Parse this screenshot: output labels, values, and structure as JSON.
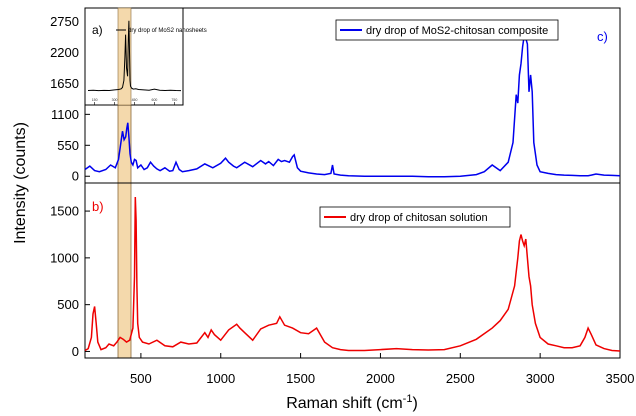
{
  "figure": {
    "xlabel_main": "Raman shift (cm",
    "xlabel_sup": "-1",
    "xlabel_close": ")",
    "ylabel": "Intensity (counts)"
  },
  "chart_data": [
    {
      "panel_label": "c)",
      "type": "line",
      "xlim": [
        150,
        3500
      ],
      "ylim": [
        -120,
        2990
      ],
      "yticks": [
        0,
        550,
        1100,
        1650,
        2200,
        2750
      ],
      "grid": false,
      "legend": {
        "position": "top-right",
        "entries": [
          "dry drop of MoS2-chitosan composite"
        ]
      },
      "series": [
        {
          "name": "dry drop of MoS2-chitosan composite",
          "color": "#0000EE",
          "x": [
            150,
            180,
            210,
            240,
            280,
            310,
            340,
            360,
            375,
            385,
            395,
            405,
            412,
            418,
            425,
            432,
            440,
            450,
            460,
            470,
            480,
            500,
            520,
            540,
            560,
            580,
            600,
            620,
            650,
            680,
            700,
            720,
            740,
            760,
            800,
            850,
            900,
            950,
            1000,
            1030,
            1050,
            1080,
            1100,
            1150,
            1200,
            1250,
            1280,
            1300,
            1330,
            1360,
            1380,
            1400,
            1430,
            1450,
            1460,
            1480,
            1500,
            1550,
            1600,
            1650,
            1690,
            1700,
            1710,
            1750,
            1800,
            1900,
            2000,
            2100,
            2200,
            2300,
            2400,
            2500,
            2600,
            2650,
            2700,
            2750,
            2800,
            2830,
            2850,
            2860,
            2870,
            2880,
            2890,
            2900,
            2910,
            2920,
            2930,
            2940,
            2950,
            2960,
            2980,
            3000,
            3050,
            3100,
            3150,
            3200,
            3250,
            3300,
            3320,
            3350,
            3400,
            3450,
            3500
          ],
          "y": [
            120,
            180,
            100,
            80,
            120,
            200,
            150,
            300,
            600,
            800,
            650,
            700,
            850,
            950,
            700,
            400,
            250,
            200,
            300,
            280,
            150,
            200,
            120,
            150,
            250,
            180,
            130,
            100,
            150,
            90,
            100,
            250,
            120,
            80,
            100,
            130,
            220,
            150,
            230,
            320,
            250,
            180,
            150,
            250,
            170,
            280,
            220,
            260,
            190,
            300,
            260,
            280,
            250,
            350,
            380,
            150,
            90,
            60,
            40,
            30,
            50,
            200,
            40,
            20,
            10,
            0,
            0,
            0,
            0,
            -10,
            -10,
            0,
            30,
            80,
            200,
            100,
            250,
            600,
            1450,
            1300,
            1800,
            2000,
            2300,
            2500,
            2450,
            2350,
            1500,
            1800,
            1500,
            600,
            200,
            80,
            50,
            30,
            20,
            15,
            10,
            10,
            20,
            40,
            20,
            15,
            10
          ]
        }
      ]
    },
    {
      "panel_label": "b)",
      "type": "line",
      "xlim": [
        150,
        3500
      ],
      "ylim": [
        -70,
        1800
      ],
      "yticks": [
        0,
        500,
        1000,
        1500
      ],
      "xticks": [
        500,
        1000,
        1500,
        2000,
        2500,
        3000,
        3500
      ],
      "grid": false,
      "legend": {
        "position": "top-center",
        "entries": [
          "dry drop of chitosan solution"
        ]
      },
      "series": [
        {
          "name": "dry drop of chitosan solution",
          "color": "#EE0000",
          "x": [
            150,
            170,
            190,
            200,
            210,
            220,
            230,
            250,
            280,
            300,
            330,
            350,
            370,
            390,
            410,
            430,
            450,
            460,
            465,
            470,
            475,
            480,
            490,
            510,
            550,
            600,
            650,
            700,
            750,
            800,
            850,
            900,
            920,
            940,
            960,
            1000,
            1050,
            1100,
            1120,
            1150,
            1200,
            1250,
            1300,
            1350,
            1370,
            1400,
            1450,
            1500,
            1550,
            1600,
            1650,
            1700,
            1750,
            1800,
            1900,
            2000,
            2100,
            2200,
            2300,
            2400,
            2500,
            2600,
            2700,
            2750,
            2800,
            2840,
            2860,
            2870,
            2880,
            2890,
            2900,
            2910,
            2920,
            2930,
            2940,
            2950,
            2970,
            3000,
            3050,
            3100,
            3150,
            3200,
            3250,
            3280,
            3300,
            3320,
            3350,
            3400,
            3450,
            3500
          ],
          "y": [
            10,
            30,
            150,
            400,
            480,
            300,
            100,
            20,
            40,
            80,
            60,
            100,
            150,
            130,
            100,
            120,
            250,
            800,
            1650,
            1400,
            700,
            300,
            150,
            100,
            80,
            120,
            60,
            50,
            100,
            80,
            90,
            200,
            150,
            230,
            180,
            120,
            230,
            290,
            250,
            200,
            120,
            240,
            280,
            300,
            370,
            280,
            250,
            200,
            190,
            250,
            100,
            40,
            20,
            10,
            10,
            20,
            30,
            20,
            15,
            20,
            60,
            130,
            250,
            330,
            450,
            700,
            1000,
            1180,
            1250,
            1180,
            1130,
            1200,
            1000,
            800,
            700,
            500,
            300,
            150,
            80,
            60,
            40,
            40,
            60,
            150,
            250,
            180,
            70,
            30,
            10,
            5
          ]
        }
      ]
    },
    {
      "panel_label": "a)",
      "type": "line",
      "legend": {
        "position": "top-right",
        "entries": [
          "dry drop of MoS2 nanosheets"
        ]
      },
      "xtick_labels": [
        "150",
        "300",
        "450",
        "600",
        "750"
      ],
      "series": [
        {
          "name": "dry drop of MoS2 nanosheets",
          "color": "#000000",
          "x": [
            100,
            140,
            180,
            220,
            260,
            300,
            330,
            350,
            360,
            370,
            378,
            383,
            390,
            398,
            403,
            408,
            412,
            416,
            420,
            428,
            440,
            460,
            480,
            520,
            560,
            600,
            640,
            680,
            720,
            760,
            800
          ],
          "y": [
            18,
            20,
            17,
            19,
            18,
            22,
            25,
            30,
            40,
            90,
            260,
            420,
            180,
            120,
            380,
            520,
            300,
            90,
            50,
            35,
            28,
            30,
            25,
            22,
            20,
            28,
            20,
            18,
            20,
            18,
            17
          ]
        }
      ]
    }
  ]
}
